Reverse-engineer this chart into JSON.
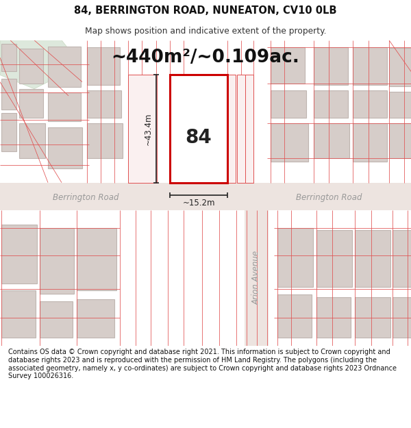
{
  "title_line1": "84, BERRINGTON ROAD, NUNEATON, CV10 0LB",
  "title_line2": "Map shows position and indicative extent of the property.",
  "footer_text": "Contains OS data © Crown copyright and database right 2021. This information is subject to Crown copyright and database rights 2023 and is reproduced with the permission of HM Land Registry. The polygons (including the associated geometry, namely x, y co-ordinates) are subject to Crown copyright and database rights 2023 Ordnance Survey 100026316.",
  "bg_color": "#ffffff",
  "map_bg": "#f9f3f2",
  "road_fill": "#ede4e0",
  "bld_fill": "#d6cdc9",
  "bld_edge": "#bfb5b0",
  "red_line": "#e05050",
  "red_fill": "#faf0f0",
  "highlight_edge": "#cc0000",
  "highlight_fill": "#ffffff",
  "park_fill": "#dde8dc",
  "park_edge": "#c8d8c0",
  "area_label": "~440m²/~0.109ac.",
  "width_label": "~15.2m",
  "height_label": "~43.4m",
  "number_label": "84",
  "road_label_left": "Berrington Road",
  "road_label_right": "Berrington Road",
  "avenue_label": "Arion Avenue"
}
